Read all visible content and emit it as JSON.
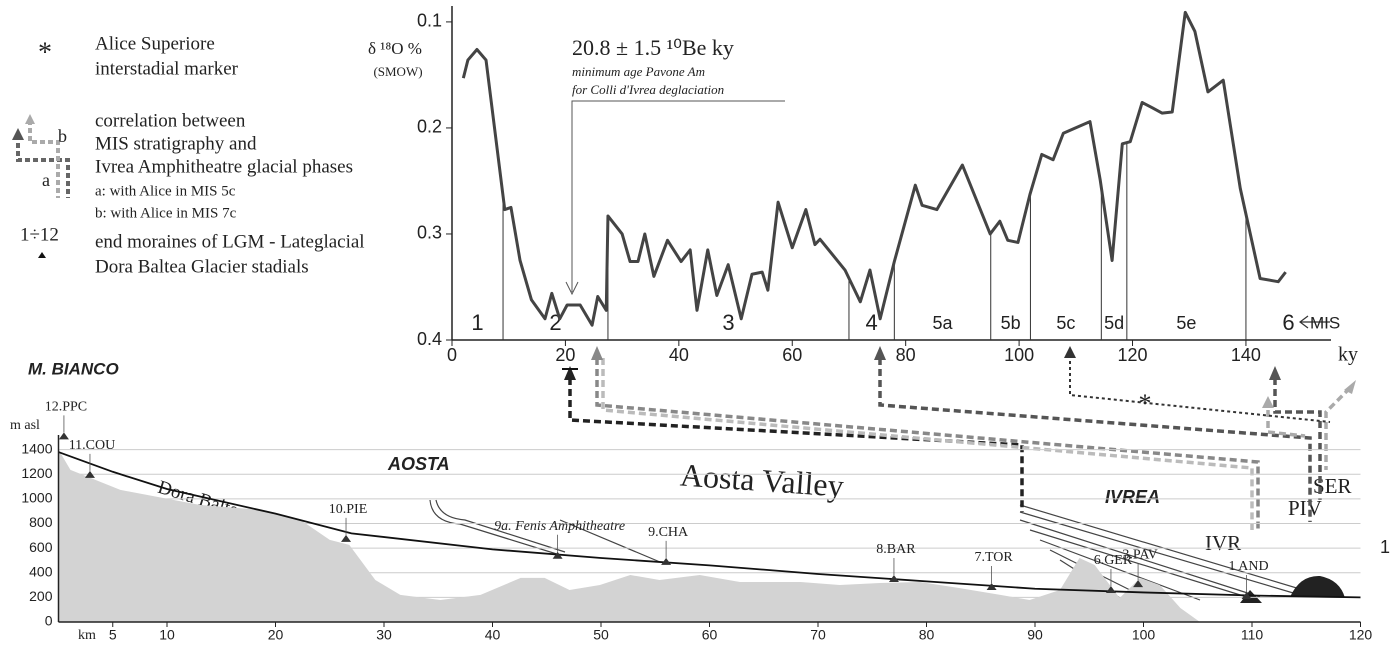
{
  "chart_data": [
    {
      "type": "line",
      "ylabel": [
        "δ ¹⁸O %",
        "(SMOW)"
      ],
      "xlabel": "ky",
      "annotations": [
        "20.8 ± 1.5 ¹⁰Be ky",
        "minimum age Pavone Am",
        "for Colli d'Ivrea deglaciation"
      ],
      "color": "#444444",
      "x": [
        2,
        2.8,
        4.4,
        6,
        9.3,
        10.4,
        12,
        14,
        16.4,
        17.6,
        19,
        20.3,
        22.6,
        24.7,
        25.7,
        27.2,
        27.5,
        30,
        31.4,
        32.8,
        34,
        35.6,
        38,
        40.4,
        42,
        43.2,
        45.1,
        46.7,
        48.7,
        51,
        52.9,
        54.7,
        55.7,
        57.5,
        60,
        62.4,
        64,
        64.9,
        69.3,
        72,
        73.7,
        75.5,
        78,
        81.7,
        82.9,
        85.5,
        90,
        94.9,
        96.6,
        98,
        99.8,
        101.9,
        104,
        106,
        107.8,
        112.5,
        114.3,
        116.4,
        118.2,
        119.6,
        121.7,
        123.5,
        125.2,
        127,
        129.3,
        131,
        133.3,
        136,
        139,
        142.5,
        145.7,
        147
      ],
      "values": [
        0.153,
        0.136,
        0.126,
        0.136,
        0.277,
        0.275,
        0.325,
        0.362,
        0.38,
        0.356,
        0.38,
        0.367,
        0.367,
        0.386,
        0.359,
        0.372,
        0.283,
        0.3,
        0.326,
        0.326,
        0.3,
        0.34,
        0.306,
        0.326,
        0.315,
        0.372,
        0.315,
        0.358,
        0.329,
        0.38,
        0.338,
        0.336,
        0.353,
        0.27,
        0.313,
        0.277,
        0.31,
        0.305,
        0.334,
        0.364,
        0.334,
        0.38,
        0.326,
        0.254,
        0.273,
        0.277,
        0.235,
        0.3,
        0.288,
        0.306,
        0.308,
        0.263,
        0.225,
        0.23,
        0.205,
        0.194,
        0.249,
        0.325,
        0.215,
        0.213,
        0.176,
        0.181,
        0.186,
        0.185,
        0.091,
        0.109,
        0.166,
        0.155,
        0.257,
        0.342,
        0.345,
        0.336
      ],
      "xlim": [
        0,
        155
      ],
      "xticks": [
        0,
        20,
        40,
        60,
        80,
        100,
        120,
        140
      ],
      "ylim": [
        0.4,
        0.085
      ],
      "yticks": [
        0.1,
        0.2,
        0.3,
        0.4
      ],
      "mis_title": "MIS",
      "mis_labels": [
        "1",
        "2",
        "3",
        "4",
        "5a",
        "5b",
        "5c",
        "5d",
        "5e",
        "6"
      ],
      "mis_boundaries": [
        9,
        27.5,
        70,
        78,
        95,
        102,
        114.5,
        119,
        140
      ]
    },
    {
      "type": "area",
      "title": "M. BIANCO",
      "ylabel": "m asl",
      "xlabel": "km",
      "labels": [
        "AOSTA",
        "Aosta Valley",
        "IVREA",
        "IVR",
        "PIV",
        "SER",
        "1"
      ],
      "series": [
        {
          "type": "area",
          "color": "#d3d3d3",
          "x": [
            0,
            1.1,
            5.7,
            13,
            18.6,
            22.3,
            25,
            26.8,
            29.2,
            31.5,
            35.2,
            38.9,
            42.6,
            44.8,
            47.1,
            49.9,
            52.7,
            55.4,
            59.1,
            62.8,
            68.4,
            72,
            75.7,
            79.4,
            83,
            86.8,
            89.5,
            92.3,
            94.1,
            95.5,
            97.8,
            99.7,
            101.5,
            103.4,
            105.2,
            120
          ],
          "values": [
            1400,
            1236,
            1073,
            951,
            911,
            829,
            667,
            626,
            341,
            220,
            179,
            220,
            358,
            358,
            260,
            301,
            382,
            341,
            382,
            325,
            325,
            301,
            317,
            325,
            276,
            220,
            179,
            260,
            520,
            463,
            195,
            358,
            301,
            114,
            0,
            0
          ]
        },
        {
          "type": "line",
          "name": "Dora Baltea R.",
          "color": "#111111",
          "x": [
            0,
            5,
            10,
            20,
            27,
            40,
            50,
            60,
            70,
            80,
            90,
            100,
            110,
            120
          ],
          "values": [
            1380,
            1220,
            1080,
            880,
            720,
            590,
            520,
            460,
            390,
            330,
            270,
            240,
            215,
            200
          ]
        }
      ],
      "sites": [
        {
          "label": "12.PPC",
          "km": 0.5,
          "elevation": 1500
        },
        {
          "label": "11.COU",
          "km": 2.9,
          "elevation": 1187
        },
        {
          "label": "10.PIE",
          "km": 26.5,
          "elevation": 667
        },
        {
          "label": "9a. Fenis Amphitheatre",
          "km": 46,
          "elevation": 530
        },
        {
          "label": "9.CHA",
          "km": 56,
          "elevation": 480
        },
        {
          "label": "8.BAR",
          "km": 77,
          "elevation": 341
        },
        {
          "label": "7.TOR",
          "km": 86,
          "elevation": 276
        },
        {
          "label": "6.GER",
          "km": 97,
          "elevation": 252
        },
        {
          "label": "3.PAV",
          "km": 99.5,
          "elevation": 300
        },
        {
          "label": "1 AND",
          "km": 109.5,
          "elevation": 203
        }
      ],
      "xlim": [
        0,
        120
      ],
      "xticks": [
        5,
        10,
        20,
        30,
        40,
        50,
        60,
        70,
        80,
        90,
        100,
        110,
        120
      ],
      "ylim": [
        0,
        1600
      ],
      "yticks": [
        0,
        200,
        400,
        600,
        800,
        1000,
        1200,
        1400
      ],
      "grid": true
    }
  ],
  "legend": {
    "marker_symbol": "*",
    "marker_text": [
      "Alice Superiore",
      "interstadial marker"
    ],
    "icon_a": "a",
    "icon_b": "b",
    "correlation_text": [
      "correlation between",
      "MIS stratigraphy and",
      "Ivrea Amphitheatre glacial phases"
    ],
    "correlation_a": "a: with Alice in MIS 5c",
    "correlation_b": "b: with Alice in MIS 7c",
    "moraine_symbol": "1÷12",
    "moraine_text": [
      "end moraines of LGM - Lateglacial",
      "Dora Baltea Glacier stadials"
    ]
  }
}
